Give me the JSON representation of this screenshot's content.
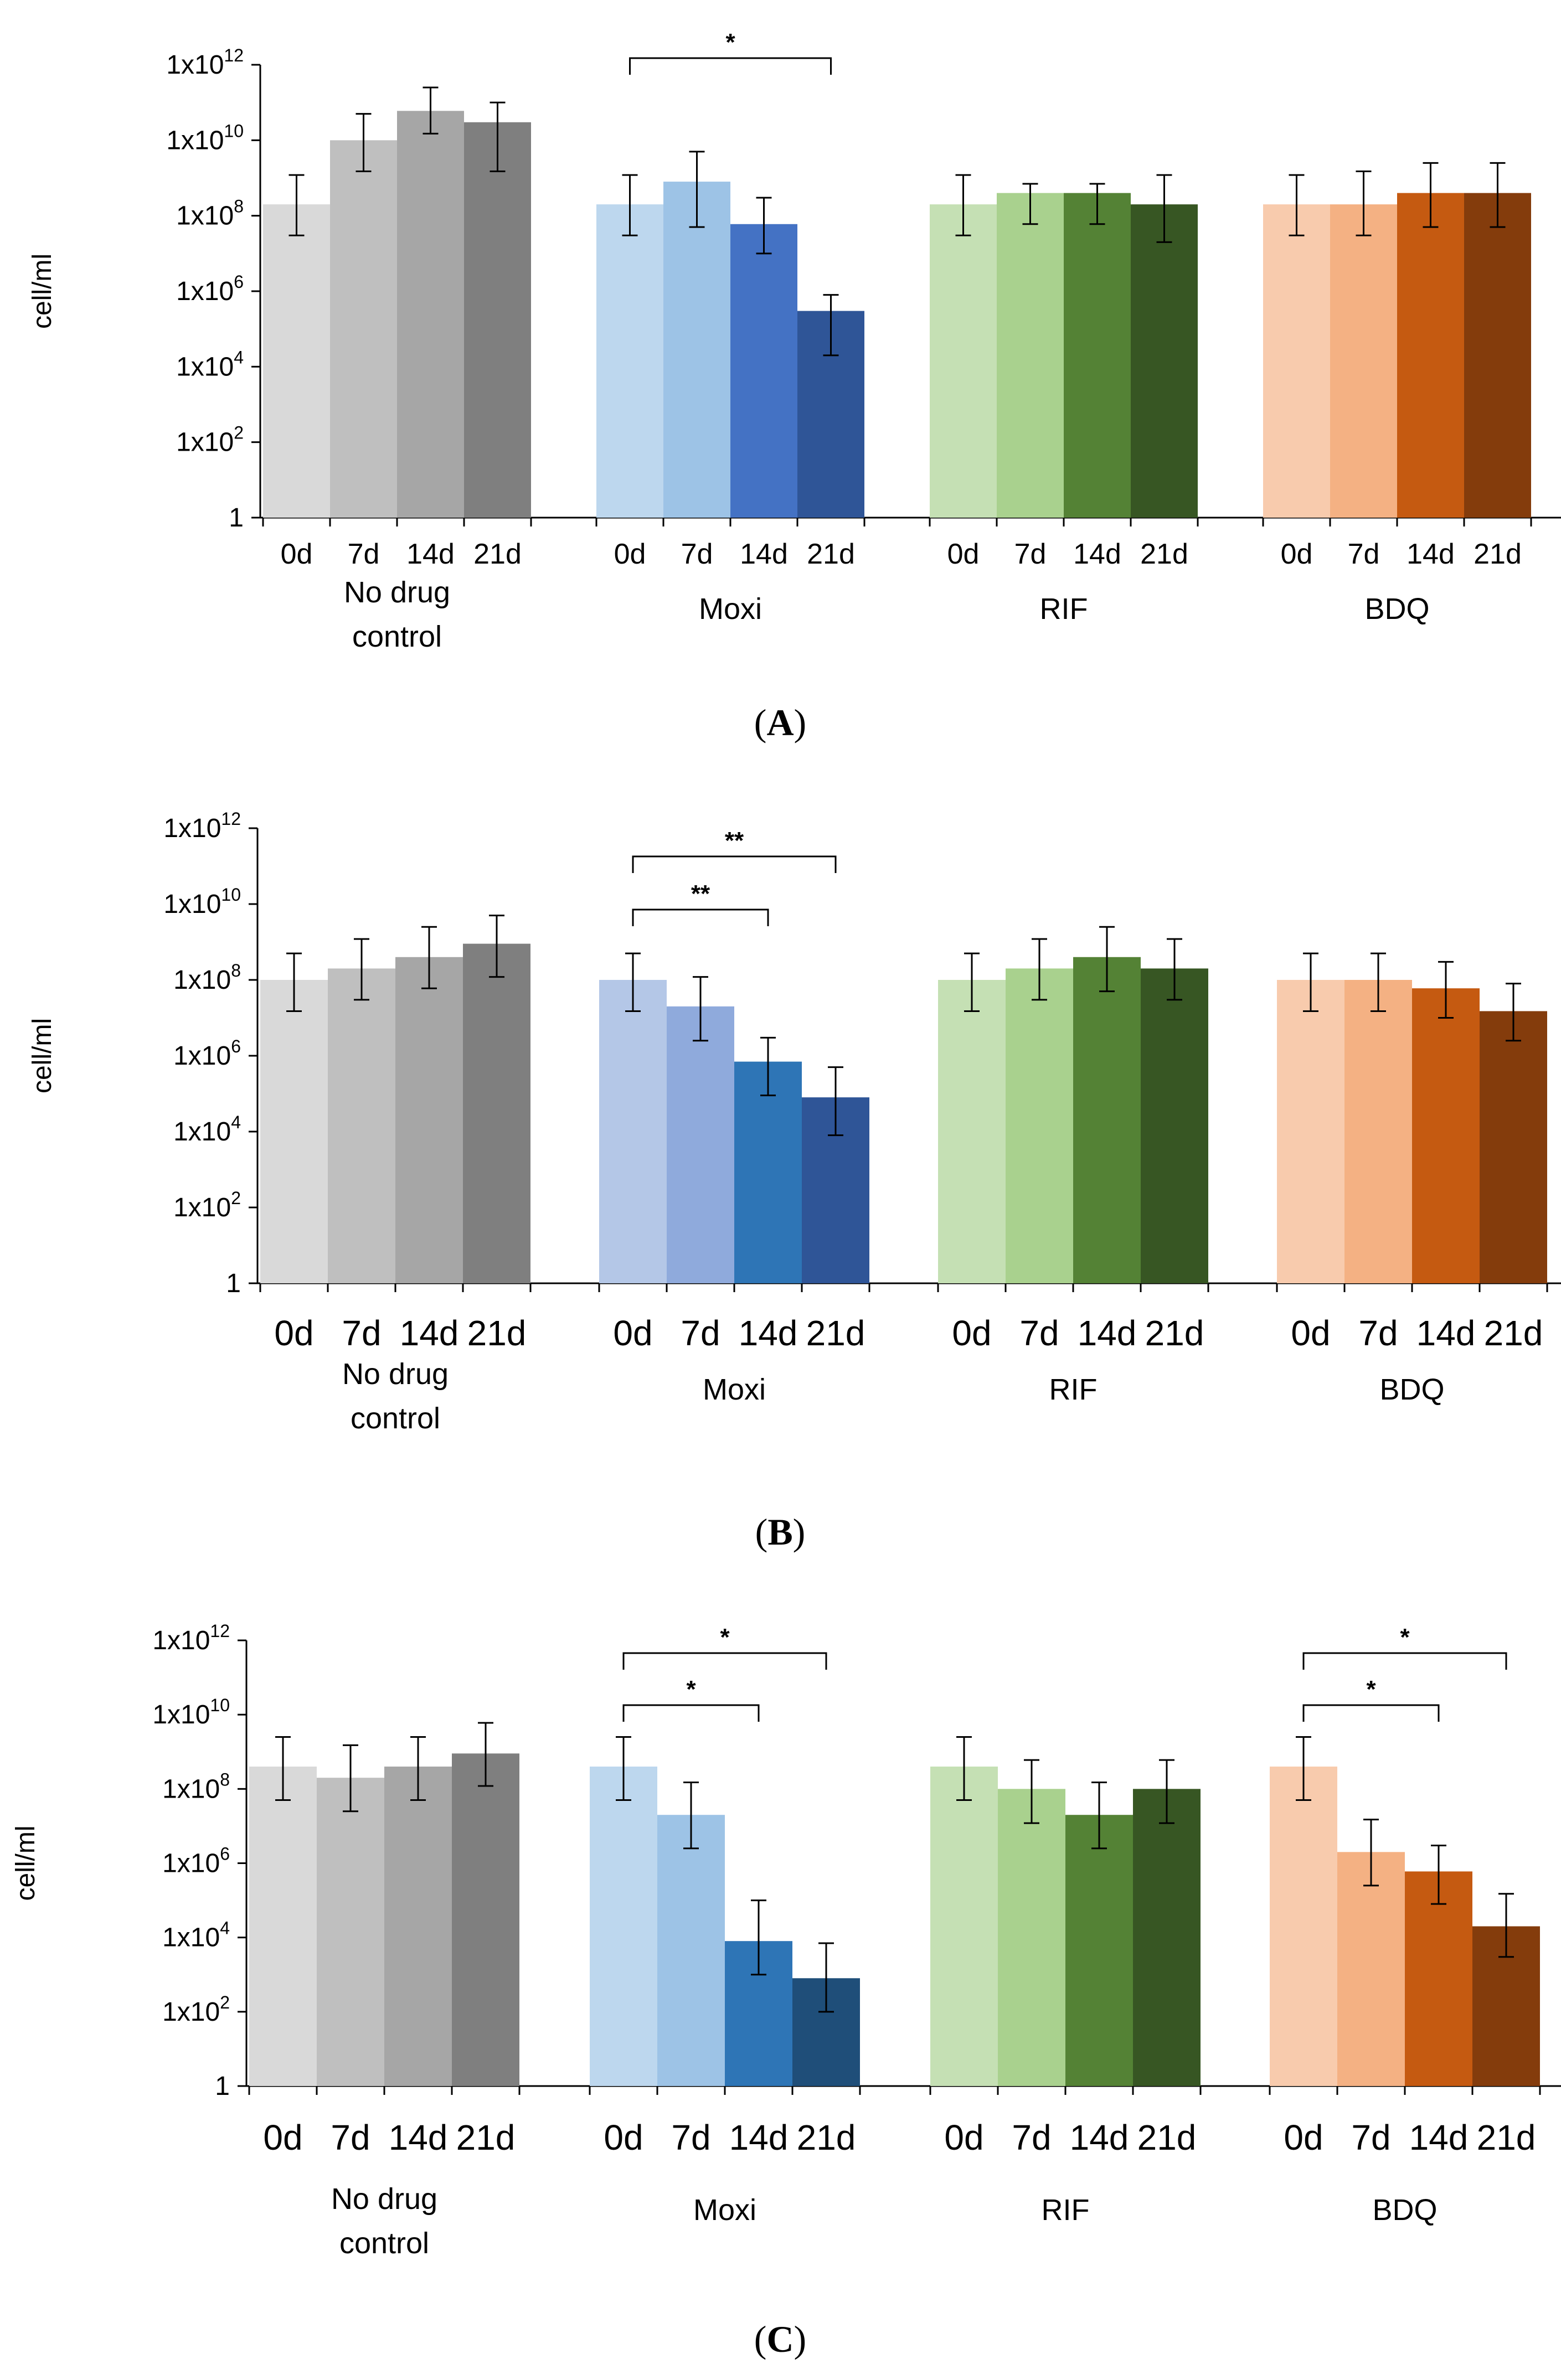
{
  "figure": {
    "panel_labels": [
      "(A)",
      "(B)",
      "(C)"
    ],
    "colors": {
      "no_drug_control": [
        "#d9d9d9",
        "#bfbfbf",
        "#a6a6a6",
        "#7f7f7f"
      ],
      "moxi": [
        "#bdd7ee",
        "#9dc3e6",
        "#4472c4",
        "#2f5597"
      ],
      "moxi_B": [
        "#b4c7e7",
        "#8faadc",
        "#2e75b6",
        "#2f5597"
      ],
      "moxi_C": [
        "#bdd7ee",
        "#9dc3e6",
        "#2e75b6",
        "#1f4e79"
      ],
      "rif": [
        "#c5e0b4",
        "#a9d18e",
        "#548235",
        "#375623"
      ],
      "bdq": [
        "#f8cbad",
        "#f4b183",
        "#c55a11",
        "#843c0c"
      ],
      "axis": "#000000"
    }
  },
  "chart_data": [
    {
      "type": "bar",
      "panel": "(A)",
      "scale": "log10",
      "ylabel": "cell/ml",
      "ylim": [
        1,
        1000000000000.0
      ],
      "ytick_labels": [
        "1",
        "1x10",
        "1x10",
        "1x10",
        "1x10",
        "1x10",
        "1x10"
      ],
      "ytick_exponents": [
        "",
        "2",
        "4",
        "6",
        "8",
        "10",
        "12"
      ],
      "time_labels": [
        "0d",
        "7d",
        "14d",
        "21d"
      ],
      "groups": [
        {
          "name": "No drug control",
          "name_lines": [
            "No drug",
            "control"
          ],
          "values": [
            200000000.0,
            10000000000.0,
            60000000000.0,
            30000000000.0
          ],
          "err_low": [
            30000000.0,
            1500000000.0,
            15000000000.0,
            1500000000.0
          ],
          "err_high": [
            1200000000.0,
            50000000000.0,
            250000000000.0,
            100000000000.0
          ]
        },
        {
          "name": "Moxi",
          "name_lines": [
            "Moxi"
          ],
          "values": [
            200000000.0,
            800000000.0,
            60000000.0,
            300000.0
          ],
          "err_low": [
            30000000.0,
            50000000.0,
            10000000.0,
            20000.0
          ],
          "err_high": [
            1200000000.0,
            5000000000.0,
            300000000.0,
            800000.0
          ]
        },
        {
          "name": "RIF",
          "name_lines": [
            "RIF"
          ],
          "values": [
            200000000.0,
            400000000.0,
            400000000.0,
            200000000.0
          ],
          "err_low": [
            30000000.0,
            60000000.0,
            60000000.0,
            20000000.0
          ],
          "err_high": [
            1200000000.0,
            700000000.0,
            700000000.0,
            1200000000.0
          ]
        },
        {
          "name": "BDQ",
          "name_lines": [
            "BDQ"
          ],
          "values": [
            200000000.0,
            200000000.0,
            400000000.0,
            400000000.0
          ],
          "err_low": [
            30000000.0,
            30000000.0,
            50000000.0,
            50000000.0
          ],
          "err_high": [
            1200000000.0,
            1500000000.0,
            2500000000.0,
            2500000000.0
          ]
        }
      ],
      "significance": [
        {
          "group": "Moxi",
          "from": "0d",
          "to": "21d",
          "label": "*"
        }
      ]
    },
    {
      "type": "bar",
      "panel": "(B)",
      "scale": "log10",
      "ylabel": "cell/ml",
      "ylim": [
        1,
        1000000000000.0
      ],
      "ytick_labels": [
        "1",
        "1x10",
        "1x10",
        "1x10",
        "1x10",
        "1x10",
        "1x10"
      ],
      "ytick_exponents": [
        "",
        "2",
        "4",
        "6",
        "8",
        "10",
        "12"
      ],
      "time_labels": [
        "0d",
        "7d",
        "14d",
        "21d"
      ],
      "groups": [
        {
          "name": "No drug control",
          "name_lines": [
            "No drug",
            "control"
          ],
          "values": [
            100000000.0,
            200000000.0,
            400000000.0,
            900000000.0
          ],
          "err_low": [
            15000000.0,
            30000000.0,
            60000000.0,
            120000000.0
          ],
          "err_high": [
            500000000.0,
            1200000000.0,
            2500000000.0,
            5000000000.0
          ]
        },
        {
          "name": "Moxi",
          "name_lines": [
            "Moxi"
          ],
          "values": [
            100000000.0,
            20000000.0,
            700000.0,
            80000.0
          ],
          "err_low": [
            15000000.0,
            2500000.0,
            90000.0,
            8000.0
          ],
          "err_high": [
            500000000.0,
            120000000.0,
            3000000.0,
            500000.0
          ]
        },
        {
          "name": "RIF",
          "name_lines": [
            "RIF"
          ],
          "values": [
            100000000.0,
            200000000.0,
            400000000.0,
            200000000.0
          ],
          "err_low": [
            15000000.0,
            30000000.0,
            50000000.0,
            30000000.0
          ],
          "err_high": [
            500000000.0,
            1200000000.0,
            2500000000.0,
            1200000000.0
          ]
        },
        {
          "name": "BDQ",
          "name_lines": [
            "BDQ"
          ],
          "values": [
            100000000.0,
            100000000.0,
            60000000.0,
            15000000.0
          ],
          "err_low": [
            15000000.0,
            15000000.0,
            10000000.0,
            2500000.0
          ],
          "err_high": [
            500000000.0,
            500000000.0,
            300000000.0,
            80000000.0
          ]
        }
      ],
      "significance": [
        {
          "group": "Moxi",
          "from": "0d",
          "to": "21d",
          "label": "**"
        },
        {
          "group": "Moxi",
          "from": "0d",
          "to": "14d",
          "label": "**"
        }
      ]
    },
    {
      "type": "bar",
      "panel": "(C)",
      "scale": "log10",
      "ylabel": "cell/ml",
      "ylim": [
        1,
        1000000000000.0
      ],
      "ytick_labels": [
        "1",
        "1x10",
        "1x10",
        "1x10",
        "1x10",
        "1x10",
        "1x10"
      ],
      "ytick_exponents": [
        "",
        "2",
        "4",
        "6",
        "8",
        "10",
        "12"
      ],
      "time_labels": [
        "0d",
        "7d",
        "14d",
        "21d"
      ],
      "groups": [
        {
          "name": "No drug control",
          "name_lines": [
            "No drug",
            "control"
          ],
          "values": [
            400000000.0,
            200000000.0,
            400000000.0,
            900000000.0
          ],
          "err_low": [
            50000000.0,
            25000000.0,
            50000000.0,
            120000000.0
          ],
          "err_high": [
            2500000000.0,
            1500000000.0,
            2500000000.0,
            6000000000.0
          ]
        },
        {
          "name": "Moxi",
          "name_lines": [
            "Moxi"
          ],
          "values": [
            400000000.0,
            20000000.0,
            8000.0,
            800.0
          ],
          "err_low": [
            50000000.0,
            2500000.0,
            1000.0,
            100.0
          ],
          "err_high": [
            2500000000.0,
            150000000.0,
            100000.0,
            7000.0
          ]
        },
        {
          "name": "RIF",
          "name_lines": [
            "RIF"
          ],
          "values": [
            400000000.0,
            100000000.0,
            20000000.0,
            100000000.0
          ],
          "err_low": [
            50000000.0,
            12000000.0,
            2500000.0,
            12000000.0
          ],
          "err_high": [
            2500000000.0,
            600000000.0,
            150000000.0,
            600000000.0
          ]
        },
        {
          "name": "BDQ",
          "name_lines": [
            "BDQ"
          ],
          "values": [
            400000000.0,
            2000000.0,
            600000.0,
            20000.0
          ],
          "err_low": [
            50000000.0,
            250000.0,
            80000.0,
            3000.0
          ],
          "err_high": [
            2500000000.0,
            15000000.0,
            3000000.0,
            150000.0
          ]
        }
      ],
      "significance": [
        {
          "group": "Moxi",
          "from": "0d",
          "to": "21d",
          "label": "*"
        },
        {
          "group": "Moxi",
          "from": "0d",
          "to": "14d",
          "label": "*"
        },
        {
          "group": "BDQ",
          "from": "0d",
          "to": "21d",
          "label": "*"
        },
        {
          "group": "BDQ",
          "from": "0d",
          "to": "14d",
          "label": "*"
        }
      ]
    }
  ]
}
